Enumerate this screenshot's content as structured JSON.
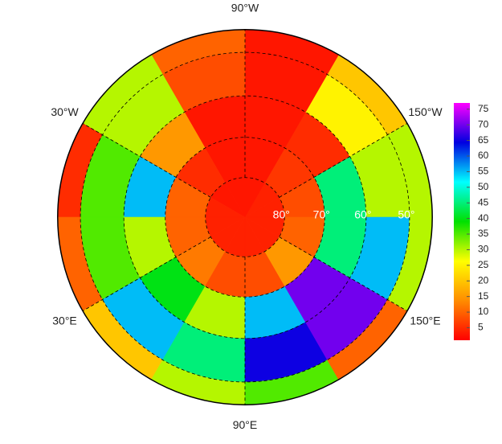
{
  "map": {
    "type": "polar-heatmap",
    "grid": {
      "lat_edges": [
        90,
        80,
        70,
        60,
        50,
        45
      ],
      "lon_edges": [
        -180,
        -150,
        -120,
        -90,
        -60,
        -30,
        0,
        30,
        60,
        90,
        120,
        150,
        180
      ],
      "values": [
        [
          4,
          4,
          3,
          3,
          3,
          4,
          4,
          4,
          4,
          4,
          4,
          4
        ],
        [
          8,
          6,
          3,
          3,
          5,
          10,
          10,
          12,
          8,
          8,
          15,
          10
        ],
        [
          45,
          5,
          3,
          3,
          15,
          55,
          30,
          40,
          30,
          55,
          70,
          45
        ],
        [
          30,
          25,
          3,
          8,
          30,
          35,
          35,
          55,
          45,
          65,
          70,
          55
        ],
        [
          30,
          20,
          3,
          10,
          30,
          5,
          10,
          20,
          30,
          35,
          10,
          30
        ]
      ]
    },
    "lon_labels": [
      {
        "value": -90,
        "label": "90°W"
      },
      {
        "value": -30,
        "label": "30°W"
      },
      {
        "value": -150,
        "label": "150°W"
      },
      {
        "value": 30,
        "label": "30°E"
      },
      {
        "value": 150,
        "label": "150°E"
      },
      {
        "value": 90,
        "label": "90°E"
      }
    ],
    "lat_labels": [
      {
        "value": 80,
        "label": "80°"
      },
      {
        "value": 70,
        "label": "70°"
      },
      {
        "value": 60,
        "label": "60°"
      },
      {
        "value": 50,
        "label": "50°"
      }
    ],
    "colorbar": {
      "clim": [
        1,
        77
      ],
      "ticks": [
        5,
        10,
        15,
        20,
        25,
        30,
        35,
        40,
        45,
        50,
        55,
        60,
        65,
        70,
        75
      ],
      "colorscale": [
        "#ff0000",
        "#ff8c00",
        "#ffff00",
        "#00e000",
        "#00ffff",
        "#0000e0",
        "#ff00ff"
      ]
    }
  }
}
